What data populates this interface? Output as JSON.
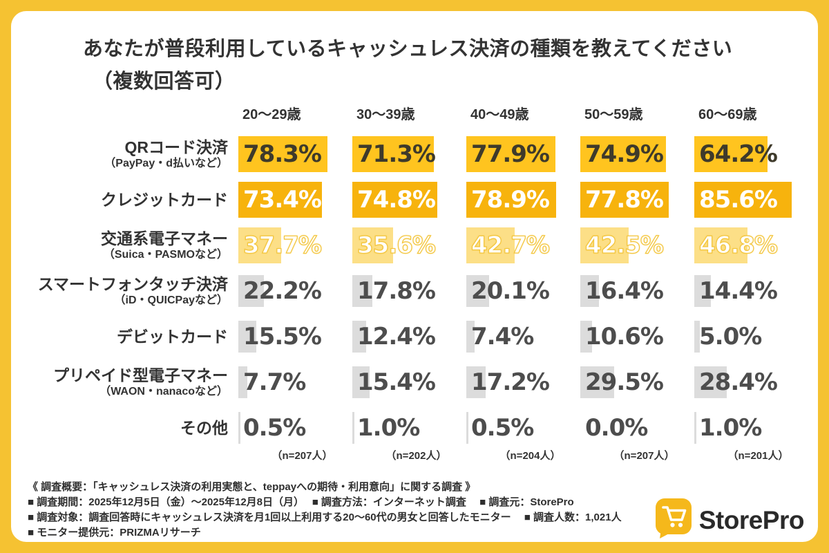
{
  "colors": {
    "page_bg": "#F5C232",
    "card_bg": "#FFFFFF",
    "title_text": "#333333",
    "gray_bar": "#DCDCDC",
    "gray_text": "#4D4D4D"
  },
  "title": {
    "line1": "あなたが普段利用しているキャッシュレス決済の種類を教えてください",
    "line2": "（複数回答可）"
  },
  "chart_data": {
    "type": "bar",
    "orientation": "horizontal",
    "unit": "%",
    "xlim": [
      0,
      100
    ],
    "grid": false,
    "age_groups": [
      "20〜29歳",
      "30〜39歳",
      "40〜49歳",
      "50〜59歳",
      "60〜69歳"
    ],
    "sample_sizes": [
      "（n=207人）",
      "（n=202人）",
      "（n=204人）",
      "（n=207人）",
      "（n=201人）"
    ],
    "rows": [
      {
        "label": "QRコード決済",
        "sublabel": "（PayPay・d払いなど）",
        "values": [
          78.3,
          71.3,
          77.9,
          74.9,
          64.2
        ],
        "bar_color": "#FFC41F",
        "value_color": "#3E3A2B",
        "value_outline": ""
      },
      {
        "label": "クレジットカード",
        "sublabel": "",
        "values": [
          73.4,
          74.8,
          78.9,
          77.8,
          85.6
        ],
        "bar_color": "#F7B30D",
        "value_color": "#FFFFFF",
        "value_outline": ""
      },
      {
        "label": "交通系電子マネー",
        "sublabel": "（Suica・PASMOなど）",
        "values": [
          37.7,
          35.6,
          42.7,
          42.5,
          46.8
        ],
        "bar_color": "#FCDF87",
        "value_color": "#FFFFFF",
        "value_outline": "#F3C53C"
      },
      {
        "label": "スマートフォンタッチ決済",
        "sublabel": "（iD・QUICPayなど）",
        "values": [
          22.2,
          17.8,
          20.1,
          16.4,
          14.4
        ],
        "bar_color": "#DCDCDC",
        "value_color": "#4D4D4D",
        "value_outline": ""
      },
      {
        "label": "デビットカード",
        "sublabel": "",
        "values": [
          15.5,
          12.4,
          7.4,
          10.6,
          5.0
        ],
        "bar_color": "#DCDCDC",
        "value_color": "#4D4D4D",
        "value_outline": ""
      },
      {
        "label": "プリペイド型電子マネー",
        "sublabel": "（WAON・nanacoなど）",
        "values": [
          7.7,
          15.4,
          17.2,
          29.5,
          28.4
        ],
        "bar_color": "#DCDCDC",
        "value_color": "#4D4D4D",
        "value_outline": ""
      },
      {
        "label": "その他",
        "sublabel": "",
        "values": [
          0.5,
          1.0,
          0.5,
          0.0,
          1.0
        ],
        "bar_color": "#DCDCDC",
        "value_color": "#4D4D4D",
        "value_outline": ""
      }
    ]
  },
  "footer": {
    "line1": "《 調査概要：「キャッシュレス決済の利用実態と、teppayへの期待・利用意向」に関する調査 》",
    "line2": "■ 調査期間：2025年12月5日（金）〜2025年12月8日（月）　 ■ 調査方法：インターネット調査　 ■ 調査元：StorePro",
    "line3": "■ 調査対象：調査回答時にキャッシュレス決済を月1回以上利用する20〜60代の男女と回答したモニター　 ■ 調査人数：1,021人",
    "line4": "■ モニター提供元：PRIZMAリサーチ"
  },
  "logo": {
    "text": "StorePro",
    "icon": "cart-icon",
    "icon_bg": "#F5B81B",
    "icon_fg": "#FFFFFF",
    "text_color": "#2A2A2A"
  }
}
